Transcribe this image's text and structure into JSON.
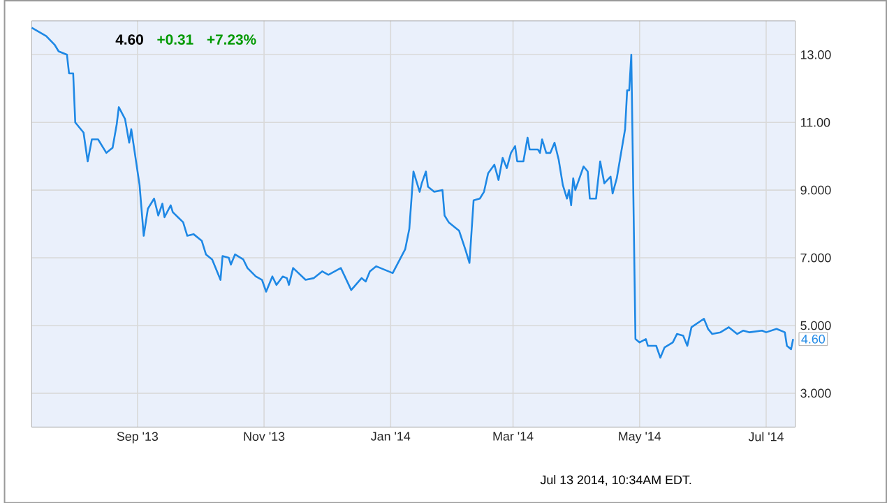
{
  "chart_data": {
    "type": "line",
    "annotations": [
      "4.60",
      "+0.31",
      "+7.23%",
      "Jul 13 2014, 10:34AM EDT.",
      {
        "text": "4.60",
        "x": "2014-07-14",
        "y": 4.6
      }
    ],
    "x": [
      "2013-07-12",
      "2013-07-19",
      "2013-07-23",
      "2013-07-25",
      "2013-07-29",
      "2013-07-30",
      "2013-08-01",
      "2013-08-02",
      "2013-08-06",
      "2013-08-08",
      "2013-08-10",
      "2013-08-13",
      "2013-08-17",
      "2013-08-20",
      "2013-08-22",
      "2013-08-23",
      "2013-08-26",
      "2013-08-28",
      "2013-08-29",
      "2013-09-02",
      "2013-09-04",
      "2013-09-06",
      "2013-09-09",
      "2013-09-11",
      "2013-09-13",
      "2013-09-14",
      "2013-09-17",
      "2013-09-18",
      "2013-09-23",
      "2013-09-25",
      "2013-09-28",
      "2013-10-02",
      "2013-10-04",
      "2013-10-07",
      "2013-10-11",
      "2013-10-12",
      "2013-10-15",
      "2013-10-16",
      "2013-10-18",
      "2013-10-22",
      "2013-10-24",
      "2013-10-28",
      "2013-10-31",
      "2013-11-02",
      "2013-11-05",
      "2013-11-07",
      "2013-11-10",
      "2013-11-12",
      "2013-11-13",
      "2013-11-15",
      "2013-11-21",
      "2013-11-25",
      "2013-11-29",
      "2013-12-02",
      "2013-12-08",
      "2013-12-13",
      "2013-12-18",
      "2013-12-20",
      "2013-12-22",
      "2013-12-25",
      "2014-01-02",
      "2014-01-08",
      "2014-01-10",
      "2014-01-12",
      "2014-01-15",
      "2014-01-16",
      "2014-01-18",
      "2014-01-19",
      "2014-01-22",
      "2014-01-26",
      "2014-01-27",
      "2014-01-29",
      "2014-02-01",
      "2014-02-03",
      "2014-02-06",
      "2014-02-08",
      "2014-02-10",
      "2014-02-13",
      "2014-02-15",
      "2014-02-17",
      "2014-02-20",
      "2014-02-22",
      "2014-02-24",
      "2014-02-26",
      "2014-02-28",
      "2014-03-02",
      "2014-03-03",
      "2014-03-06",
      "2014-03-08",
      "2014-03-09",
      "2014-03-13",
      "2014-03-14",
      "2014-03-15",
      "2014-03-17",
      "2014-03-19",
      "2014-03-21",
      "2014-03-23",
      "2014-03-25",
      "2014-03-27",
      "2014-03-28",
      "2014-03-29",
      "2014-03-30",
      "2014-03-31",
      "2014-04-04",
      "2014-04-06",
      "2014-04-07",
      "2014-04-10",
      "2014-04-12",
      "2014-04-14",
      "2014-04-17",
      "2014-04-18",
      "2014-04-20",
      "2014-04-24",
      "2014-04-25",
      "2014-04-26",
      "2014-04-27",
      "2014-04-29",
      "2014-05-01",
      "2014-05-04",
      "2014-05-05",
      "2014-05-09",
      "2014-05-11",
      "2014-05-13",
      "2014-05-17",
      "2014-05-19",
      "2014-05-22",
      "2014-05-24",
      "2014-05-26",
      "2014-06-01",
      "2014-06-03",
      "2014-06-05",
      "2014-06-09",
      "2014-06-13",
      "2014-06-17",
      "2014-06-20",
      "2014-06-23",
      "2014-06-29",
      "2014-07-01",
      "2014-07-06",
      "2014-07-10",
      "2014-07-11",
      "2014-07-13",
      "2014-07-14"
    ],
    "series": [
      {
        "color": "#1e88e5",
        "values": [
          13.8,
          13.55,
          13.3,
          13.1,
          13.0,
          12.45,
          12.45,
          11.0,
          10.7,
          9.85,
          10.5,
          10.5,
          10.1,
          10.25,
          10.95,
          11.45,
          11.1,
          10.4,
          10.8,
          9.15,
          7.65,
          8.45,
          8.75,
          8.25,
          8.6,
          8.2,
          8.55,
          8.35,
          8.05,
          7.65,
          7.7,
          7.5,
          7.1,
          6.95,
          6.35,
          7.05,
          7.0,
          6.8,
          7.1,
          6.95,
          6.7,
          6.45,
          6.35,
          6.0,
          6.45,
          6.2,
          6.45,
          6.4,
          6.2,
          6.7,
          6.35,
          6.4,
          6.6,
          6.5,
          6.7,
          6.05,
          6.4,
          6.3,
          6.6,
          6.75,
          6.55,
          7.25,
          7.85,
          9.55,
          8.95,
          9.2,
          9.55,
          9.1,
          8.95,
          9.0,
          8.25,
          8.05,
          7.9,
          7.8,
          7.25,
          6.85,
          8.7,
          8.75,
          8.95,
          9.5,
          9.75,
          9.3,
          9.95,
          9.65,
          10.1,
          10.3,
          9.85,
          9.85,
          10.55,
          10.2,
          10.2,
          10.1,
          10.5,
          10.1,
          10.1,
          10.4,
          9.9,
          9.15,
          8.75,
          9.0,
          8.55,
          9.35,
          9.0,
          9.7,
          9.55,
          8.75,
          8.75,
          9.85,
          9.2,
          9.4,
          8.9,
          9.35,
          10.8,
          11.95,
          11.95,
          13.0,
          4.6,
          4.5,
          4.6,
          4.4,
          4.4,
          4.05,
          4.35,
          4.5,
          4.75,
          4.7,
          4.4,
          4.95,
          5.2,
          4.9,
          4.75,
          4.8,
          4.95,
          4.75,
          4.85,
          4.8,
          4.85,
          4.8,
          4.9,
          4.8,
          4.4,
          4.3,
          4.6
        ]
      }
    ],
    "xlim": [
      "2013-07-12",
      "2014-07-15"
    ],
    "xticks": [
      {
        "value": "2013-09-01",
        "label": "Sep '13"
      },
      {
        "value": "2013-11-01",
        "label": "Nov '13"
      },
      {
        "value": "2014-01-01",
        "label": "Jan '14"
      },
      {
        "value": "2014-03-01",
        "label": "Mar '14"
      },
      {
        "value": "2014-05-01",
        "label": "May '14"
      },
      {
        "value": "2014-07-01",
        "label": "Jul '14"
      }
    ],
    "ylim": [
      2,
      14
    ],
    "yticks": [
      {
        "value": 3,
        "label": "3.000"
      },
      {
        "value": 5,
        "label": "5.000"
      },
      {
        "value": 7,
        "label": "7.000"
      },
      {
        "value": 9,
        "label": "9.000"
      },
      {
        "value": 11,
        "label": "11.00"
      },
      {
        "value": 13,
        "label": "13.00"
      }
    ],
    "grid": true
  }
}
